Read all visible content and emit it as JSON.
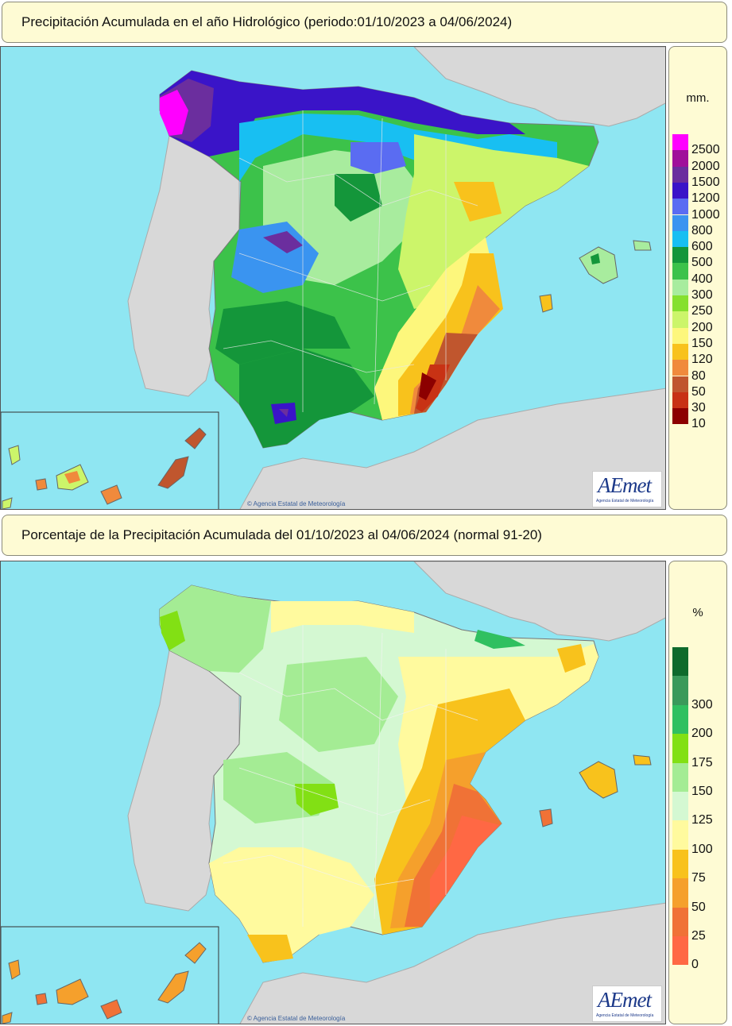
{
  "top_panel": {
    "title": "Precipitación Acumulada en el año Hidrológico  (periodo:01/10/2023 a 04/06/2024)",
    "legend_unit": "mm.",
    "legend": [
      {
        "label": "2500",
        "color": "#ff00ff"
      },
      {
        "label": "2000",
        "color": "#a0109a"
      },
      {
        "label": "1500",
        "color": "#6b2e9e"
      },
      {
        "label": "1200",
        "color": "#3a14c8"
      },
      {
        "label": "1000",
        "color": "#5a6cf2"
      },
      {
        "label": "800",
        "color": "#3a94f0"
      },
      {
        "label": "600",
        "color": "#18bff2"
      },
      {
        "label": "500",
        "color": "#14963a"
      },
      {
        "label": "400",
        "color": "#3cc24a"
      },
      {
        "label": "300",
        "color": "#a8ec9e"
      },
      {
        "label": "250",
        "color": "#86e02e"
      },
      {
        "label": "200",
        "color": "#ccf56a"
      },
      {
        "label": "150",
        "color": "#fdf77c"
      },
      {
        "label": "120",
        "color": "#f8c21c"
      },
      {
        "label": "80",
        "color": "#f08a3c"
      },
      {
        "label": "50",
        "color": "#c0562e"
      },
      {
        "label": "30",
        "color": "#c83214"
      },
      {
        "label": "10",
        "color": "#8c0000"
      }
    ],
    "credit": "© Agencia Estatal de Meteorología",
    "logo": "AEmet",
    "logo_sub": "Agencia Estatal de Meteorología"
  },
  "bottom_panel": {
    "title": "Porcentaje de la Precipitación Acumulada del 01/10/2023 al 04/06/2024 (normal 91-20)",
    "legend_unit": "%",
    "legend": [
      {
        "label": "",
        "color": "#0e6a2c"
      },
      {
        "label": "300",
        "color": "#3a9a5a"
      },
      {
        "label": "200",
        "color": "#30c060"
      },
      {
        "label": "175",
        "color": "#82e014"
      },
      {
        "label": "150",
        "color": "#a4ec94"
      },
      {
        "label": "125",
        "color": "#d4f8d2"
      },
      {
        "label": "100",
        "color": "#fffa9e"
      },
      {
        "label": "75",
        "color": "#f8c21c"
      },
      {
        "label": "50",
        "color": "#f5a02c"
      },
      {
        "label": "25",
        "color": "#f07236"
      },
      {
        "label": "0",
        "color": "#ff6844"
      }
    ],
    "credit": "© Agencia Estatal de Meteorología",
    "logo": "AEmet",
    "logo_sub": "Agencia Estatal de Meteorología"
  },
  "colors": {
    "sea": "#8fe6f2",
    "land_foreign": "#d8d8d8",
    "panel_bg": "#fefbd4"
  }
}
